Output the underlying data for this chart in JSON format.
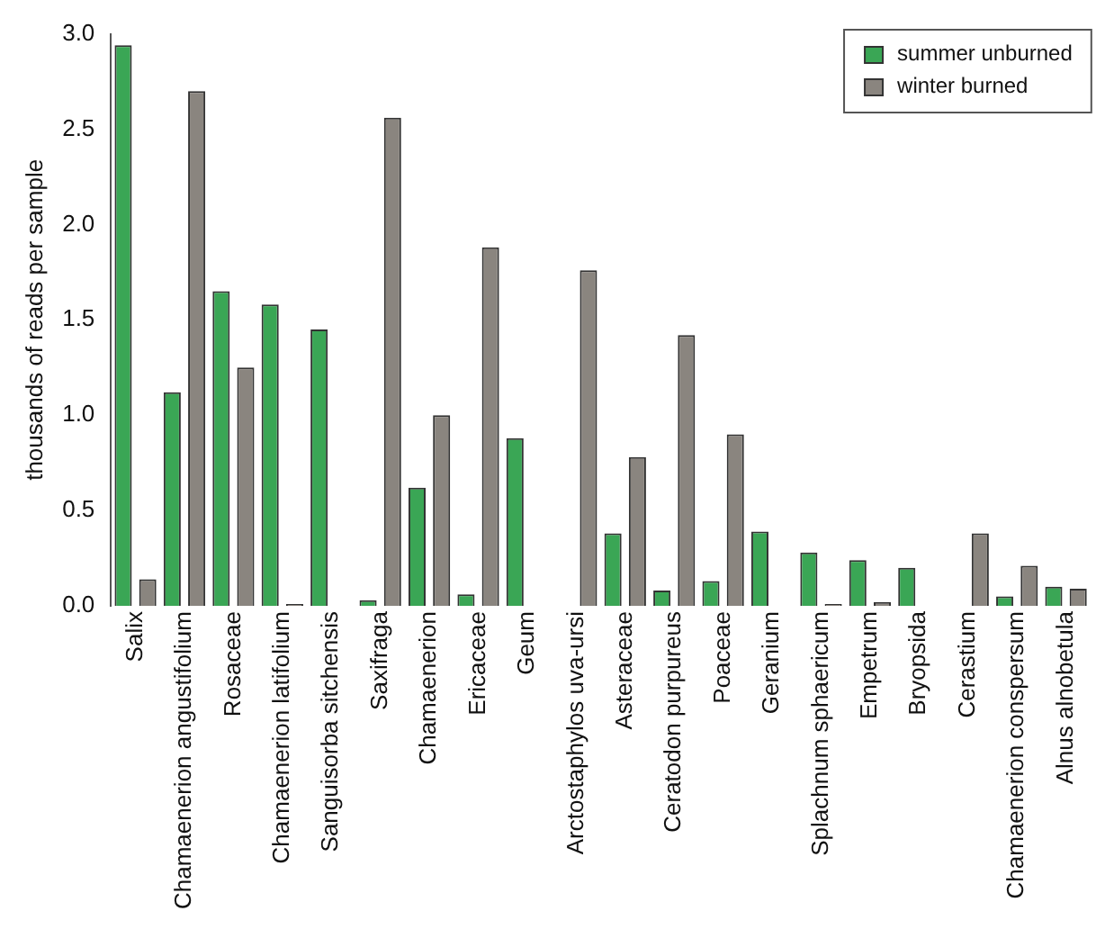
{
  "chart_data": {
    "type": "bar",
    "ylabel": "thousands of reads per sample",
    "categories": [
      "Salix",
      "Chamaenerion angustifolium",
      "Rosaceae",
      "Chamaenerion latifolium",
      "Sanguisorba sitchensis",
      "Saxifraga",
      "Chamaenerion",
      "Ericaceae",
      "Geum",
      "Arctostaphylos uva-ursi",
      "Asteraceae",
      "Ceratodon purpureus",
      "Poaceae",
      "Geranium",
      "Splachnum sphaericum",
      "Empetrum",
      "Bryopsida",
      "Cerastium",
      "Chamaenerion conspersum",
      "Alnus alnobetula"
    ],
    "series": [
      {
        "name": "summer unburned",
        "color": "#3aa655",
        "values": [
          2.94,
          1.12,
          1.65,
          1.58,
          1.45,
          0.03,
          0.62,
          0.06,
          0.88,
          0,
          0.38,
          0.08,
          0.13,
          0.39,
          0.28,
          0.24,
          0.2,
          0,
          0.05,
          0.1
        ]
      },
      {
        "name": "winter burned",
        "color": "#8a857f",
        "values": [
          0.14,
          2.7,
          1.25,
          0.01,
          0,
          2.56,
          1.0,
          1.88,
          0,
          1.76,
          0.78,
          1.42,
          0.9,
          0,
          0.01,
          0.02,
          0,
          0.38,
          0.21,
          0.09
        ]
      }
    ],
    "ylim": [
      0,
      3
    ],
    "yticks": [
      {
        "value": 0,
        "label": "0.0"
      },
      {
        "value": 0.5,
        "label": "0.5"
      },
      {
        "value": 1,
        "label": "1.0"
      },
      {
        "value": 1.5,
        "label": "1.5"
      },
      {
        "value": 2,
        "label": "2.0"
      },
      {
        "value": 2.5,
        "label": "2.5"
      },
      {
        "value": 3,
        "label": "3.0"
      }
    ],
    "grid": false,
    "legend": "top right"
  }
}
